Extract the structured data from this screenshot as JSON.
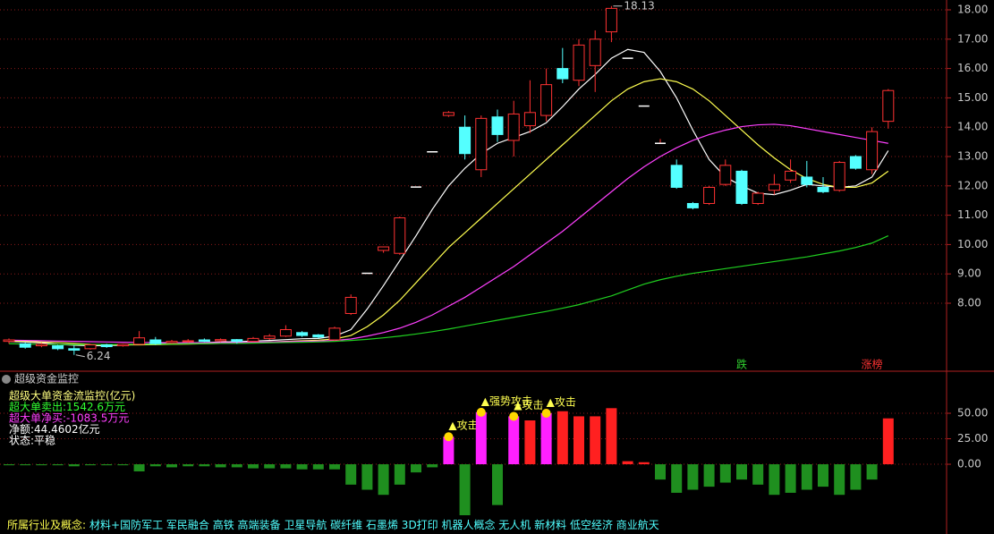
{
  "chart_data": [
    {
      "type": "candlestick",
      "open": [
        6.7,
        6.62,
        6.55,
        6.55,
        6.45,
        6.45,
        6.58,
        6.55,
        6.6,
        6.75,
        6.65,
        6.7,
        6.75,
        6.72,
        6.76,
        6.7,
        6.8,
        6.88,
        7.0,
        6.92,
        6.75,
        7.65,
        9.02,
        9.8,
        9.7,
        11.96,
        13.16,
        14.4,
        14.0,
        12.55,
        14.35,
        13.55,
        14.05,
        14.4,
        16.0,
        15.6,
        16.1,
        17.25,
        16.35,
        14.72,
        13.45,
        12.7,
        11.4,
        11.4,
        12.05,
        12.5,
        11.4,
        11.85,
        12.2,
        12.3,
        11.95,
        11.85,
        13.0,
        12.55,
        14.2
      ],
      "high": [
        6.8,
        6.66,
        6.65,
        6.58,
        6.55,
        6.62,
        6.62,
        6.62,
        7.05,
        6.85,
        6.75,
        6.78,
        6.8,
        6.8,
        6.78,
        6.85,
        6.95,
        7.25,
        7.05,
        6.95,
        7.2,
        8.3,
        9.02,
        9.92,
        10.95,
        11.96,
        13.16,
        14.55,
        14.4,
        14.4,
        14.6,
        14.9,
        15.6,
        16.0,
        16.7,
        17.0,
        17.3,
        18.13,
        16.35,
        14.72,
        13.6,
        12.9,
        11.45,
        12.0,
        12.9,
        12.55,
        11.8,
        12.4,
        12.9,
        12.85,
        12.3,
        12.85,
        13.05,
        14.0,
        15.3
      ],
      "low": [
        6.62,
        6.45,
        6.5,
        6.4,
        6.24,
        6.42,
        6.48,
        6.52,
        6.58,
        6.58,
        6.62,
        6.65,
        6.68,
        6.68,
        6.62,
        6.68,
        6.75,
        6.85,
        6.85,
        6.8,
        6.72,
        7.6,
        9.02,
        9.72,
        9.65,
        11.96,
        13.16,
        14.35,
        12.9,
        12.3,
        13.5,
        13.0,
        13.8,
        14.2,
        15.5,
        15.4,
        15.2,
        16.9,
        16.35,
        14.72,
        13.45,
        11.9,
        11.2,
        11.35,
        12.0,
        11.35,
        11.35,
        11.7,
        12.1,
        11.95,
        11.75,
        11.8,
        12.55,
        12.4,
        13.95
      ],
      "close": [
        6.75,
        6.5,
        6.6,
        6.45,
        6.4,
        6.58,
        6.52,
        6.6,
        6.82,
        6.62,
        6.7,
        6.72,
        6.7,
        6.76,
        6.7,
        6.8,
        6.88,
        7.1,
        6.9,
        6.85,
        7.15,
        8.2,
        9.02,
        9.92,
        10.91,
        11.96,
        13.16,
        14.5,
        13.1,
        14.3,
        13.75,
        14.45,
        14.5,
        15.45,
        15.65,
        16.8,
        17.0,
        18.05,
        16.35,
        14.72,
        13.45,
        11.95,
        11.25,
        11.95,
        12.7,
        11.4,
        11.75,
        12.05,
        12.5,
        12.05,
        11.8,
        12.8,
        12.6,
        13.85,
        15.25
      ],
      "up_color": "#ff3232",
      "down_color": "#54ffff",
      "lines": [
        {
          "color": "#ffffff",
          "values": [
            6.7,
            6.68,
            6.65,
            6.6,
            6.57,
            6.55,
            6.56,
            6.57,
            6.6,
            6.62,
            6.63,
            6.64,
            6.66,
            6.68,
            6.69,
            6.71,
            6.73,
            6.76,
            6.79,
            6.8,
            6.88,
            7.1,
            7.8,
            8.6,
            9.45,
            10.3,
            11.2,
            12.0,
            12.6,
            13.1,
            13.45,
            13.65,
            13.85,
            14.15,
            14.7,
            15.3,
            15.8,
            16.35,
            16.65,
            16.55,
            15.9,
            15.0,
            13.9,
            12.9,
            12.3,
            12.0,
            11.75,
            11.7,
            11.85,
            12.05,
            12.0,
            11.95,
            12.0,
            12.3,
            13.2
          ]
        },
        {
          "color": "#ffff50",
          "values": [
            6.72,
            6.7,
            6.68,
            6.66,
            6.63,
            6.6,
            6.59,
            6.58,
            6.58,
            6.59,
            6.6,
            6.61,
            6.62,
            6.63,
            6.65,
            6.66,
            6.68,
            6.7,
            6.72,
            6.74,
            6.78,
            6.9,
            7.2,
            7.6,
            8.1,
            8.7,
            9.3,
            9.9,
            10.4,
            10.9,
            11.4,
            11.9,
            12.4,
            12.9,
            13.4,
            13.9,
            14.4,
            14.9,
            15.3,
            15.55,
            15.65,
            15.55,
            15.3,
            14.9,
            14.4,
            13.9,
            13.4,
            12.95,
            12.55,
            12.25,
            12.05,
            11.95,
            11.95,
            12.1,
            12.5
          ]
        },
        {
          "color": "#ff40ff",
          "values": [
            6.74,
            6.73,
            6.72,
            6.71,
            6.7,
            6.69,
            6.68,
            6.67,
            6.66,
            6.66,
            6.65,
            6.65,
            6.65,
            6.66,
            6.66,
            6.67,
            6.68,
            6.69,
            6.7,
            6.71,
            6.73,
            6.78,
            6.88,
            7.0,
            7.15,
            7.35,
            7.6,
            7.9,
            8.2,
            8.55,
            8.9,
            9.25,
            9.65,
            10.05,
            10.45,
            10.9,
            11.35,
            11.8,
            12.25,
            12.65,
            13.0,
            13.3,
            13.55,
            13.75,
            13.9,
            14.02,
            14.08,
            14.1,
            14.05,
            13.95,
            13.85,
            13.75,
            13.65,
            13.55,
            13.45
          ]
        },
        {
          "color": "#20d020",
          "values": [
            6.62,
            6.61,
            6.6,
            6.6,
            6.59,
            6.59,
            6.59,
            6.6,
            6.6,
            6.61,
            6.61,
            6.62,
            6.62,
            6.63,
            6.63,
            6.64,
            6.65,
            6.66,
            6.67,
            6.68,
            6.7,
            6.73,
            6.77,
            6.82,
            6.88,
            6.95,
            7.03,
            7.12,
            7.22,
            7.32,
            7.42,
            7.52,
            7.62,
            7.72,
            7.83,
            7.95,
            8.1,
            8.25,
            8.45,
            8.65,
            8.8,
            8.92,
            9.02,
            9.1,
            9.18,
            9.26,
            9.34,
            9.42,
            9.5,
            9.58,
            9.68,
            9.78,
            9.9,
            10.05,
            10.3
          ]
        }
      ],
      "markers": [
        null,
        null,
        null,
        null,
        null,
        null,
        null,
        null,
        null,
        null,
        null,
        null,
        null,
        null,
        null,
        null,
        null,
        null,
        null,
        null,
        null,
        null,
        null,
        null,
        null,
        null,
        null,
        null,
        null,
        null,
        null,
        null,
        null,
        null,
        null,
        null,
        null,
        null,
        null,
        null,
        null,
        null,
        null,
        null,
        null,
        {
          "text": "跌",
          "color": "#30d030"
        },
        null,
        null,
        null,
        null,
        null,
        null,
        null,
        {
          "text": "涨榜",
          "color": "#ff3232"
        },
        null
      ],
      "ylim": [
        6.0,
        18.3
      ],
      "yticks": [
        {
          "value": 8,
          "label": "8.00"
        },
        {
          "value": 9,
          "label": "9.00"
        },
        {
          "value": 10,
          "label": "10.00"
        },
        {
          "value": 11,
          "label": "11.00"
        },
        {
          "value": 12,
          "label": "12.00"
        },
        {
          "value": 13,
          "label": "13.00"
        },
        {
          "value": 14,
          "label": "14.00"
        },
        {
          "value": 15,
          "label": "15.00"
        },
        {
          "value": 16,
          "label": "16.00"
        },
        {
          "value": 17,
          "label": "17.00"
        },
        {
          "value": 18,
          "label": "18.00"
        }
      ],
      "grid": true
    },
    {
      "type": "bar",
      "title": "超级资金监控",
      "notes": [
        "超级大单资金流监控(亿元)",
        "超大单卖出:1542.6万元",
        "超大单净买:-1083.5万元",
        "净额:44.4602亿元",
        "状态:平稳"
      ],
      "note_colors": [
        "#ffff80",
        "#30ff30",
        "#ff40ff",
        "#ffffff",
        "#ffffff"
      ],
      "values": [
        -1,
        -1,
        -1,
        -1,
        -2,
        -1,
        -1,
        -1,
        -7,
        -2,
        -3,
        -2,
        -2,
        -3,
        -3,
        -4,
        -4,
        -4,
        -5,
        -5,
        -5,
        -20,
        -25,
        -30,
        -20,
        -8,
        -3,
        27,
        -50,
        51,
        -40,
        47,
        43,
        50,
        52,
        47,
        47,
        55,
        3,
        2,
        -15,
        -28,
        -25,
        -22,
        -18,
        -15,
        -20,
        -30,
        -28,
        -25,
        -22,
        -30,
        -25,
        -15,
        45
      ],
      "signal_labels": [
        null,
        null,
        null,
        null,
        null,
        null,
        null,
        null,
        null,
        null,
        null,
        null,
        null,
        null,
        null,
        null,
        null,
        null,
        null,
        null,
        null,
        null,
        null,
        null,
        null,
        null,
        null,
        "▲攻击",
        null,
        "▲强势攻击",
        null,
        "▲攻击",
        null,
        "▲攻击",
        null,
        null,
        null,
        null,
        null,
        null,
        null,
        null,
        null,
        null,
        null,
        null,
        null,
        null,
        null,
        null,
        null,
        null,
        null,
        null,
        null
      ],
      "up_color": "#ff2020",
      "down_color": "#1f8f1f",
      "signal_color": "#ff20ff",
      "ylim": [
        -62,
        88
      ],
      "yticks": [
        {
          "value": 0,
          "label": "0.00"
        },
        {
          "value": 25,
          "label": "25.00"
        },
        {
          "value": 50,
          "label": "50.00"
        }
      ],
      "grid": true
    }
  ],
  "footer": {
    "label": "所属行业及概念:",
    "tags": "材料+国防军工 军民融合 高铁 高端装备 卫星导航 碳纤维 石墨烯 3D打印 机器人概念 无人机 新材料 低空经济 商业航天"
  }
}
